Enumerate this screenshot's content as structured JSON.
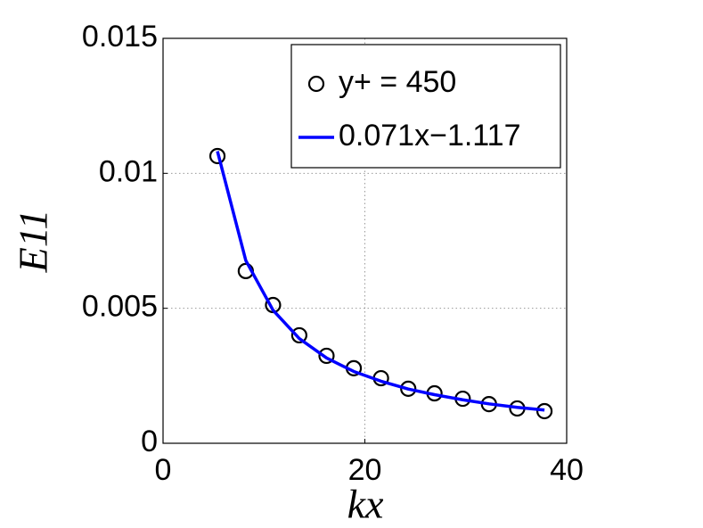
{
  "chart_data": {
    "type": "line",
    "xlabel": "kx",
    "ylabel": "E11",
    "x": [
      5.39,
      8.2,
      10.9,
      13.5,
      16.2,
      18.9,
      21.6,
      24.3,
      26.9,
      29.7,
      32.3,
      35.1,
      37.8
    ],
    "series": [
      {
        "name": "y+ = 450",
        "color": "#000000",
        "marker": "o",
        "line": false,
        "values": [
          0.01064,
          0.00638,
          0.00512,
          0.004,
          0.00324,
          0.00278,
          0.00241,
          0.00202,
          0.00185,
          0.00165,
          0.00145,
          0.00129,
          0.00119
        ]
      },
      {
        "name": "0.071x−1.117",
        "color": "#0000ff",
        "marker": null,
        "line": true,
        "values": [
          0.01082,
          0.00677,
          0.00493,
          0.00388,
          0.00316,
          0.00266,
          0.0023,
          0.00201,
          0.0018,
          0.00161,
          0.00146,
          0.00133,
          0.00123
        ]
      }
    ],
    "xlim": [
      0,
      40
    ],
    "xticks": [
      0,
      20,
      40
    ],
    "ylim": [
      0,
      0.015
    ],
    "yticks": [
      0,
      0.005,
      0.01,
      0.015
    ],
    "grid": true,
    "legend_loc": "upper right"
  }
}
